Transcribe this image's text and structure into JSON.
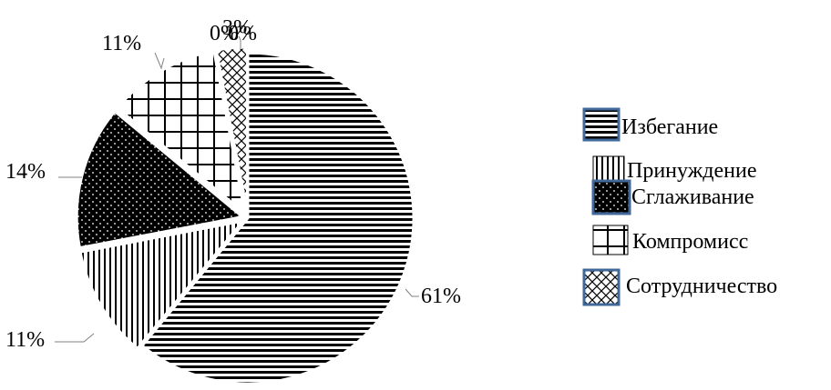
{
  "chart_data": {
    "type": "pie",
    "title": "",
    "slices": [
      {
        "label": "Избегание",
        "value": 61,
        "data_label": "61%",
        "pattern": "horizontal-lines"
      },
      {
        "label": "Принуждение",
        "value": 11,
        "data_label": "11%",
        "pattern": "vertical-lines"
      },
      {
        "label": "Сглаживание",
        "value": 14,
        "data_label": "14%",
        "pattern": "dark-dotted"
      },
      {
        "label": "Компромисс",
        "value": 11,
        "data_label": "11%",
        "pattern": "grid"
      },
      {
        "label": "Сотрудничество",
        "value": 3,
        "data_label": "3%",
        "pattern": "crosshatch"
      }
    ],
    "extra_labels": [
      "0%",
      "0%"
    ],
    "legend": {
      "position": "right",
      "entries": [
        "Избегание",
        "Принуждение",
        "Сглаживание",
        "Компромисс",
        "Сотрудничество"
      ]
    },
    "legend_frame_color": "#41689b"
  }
}
